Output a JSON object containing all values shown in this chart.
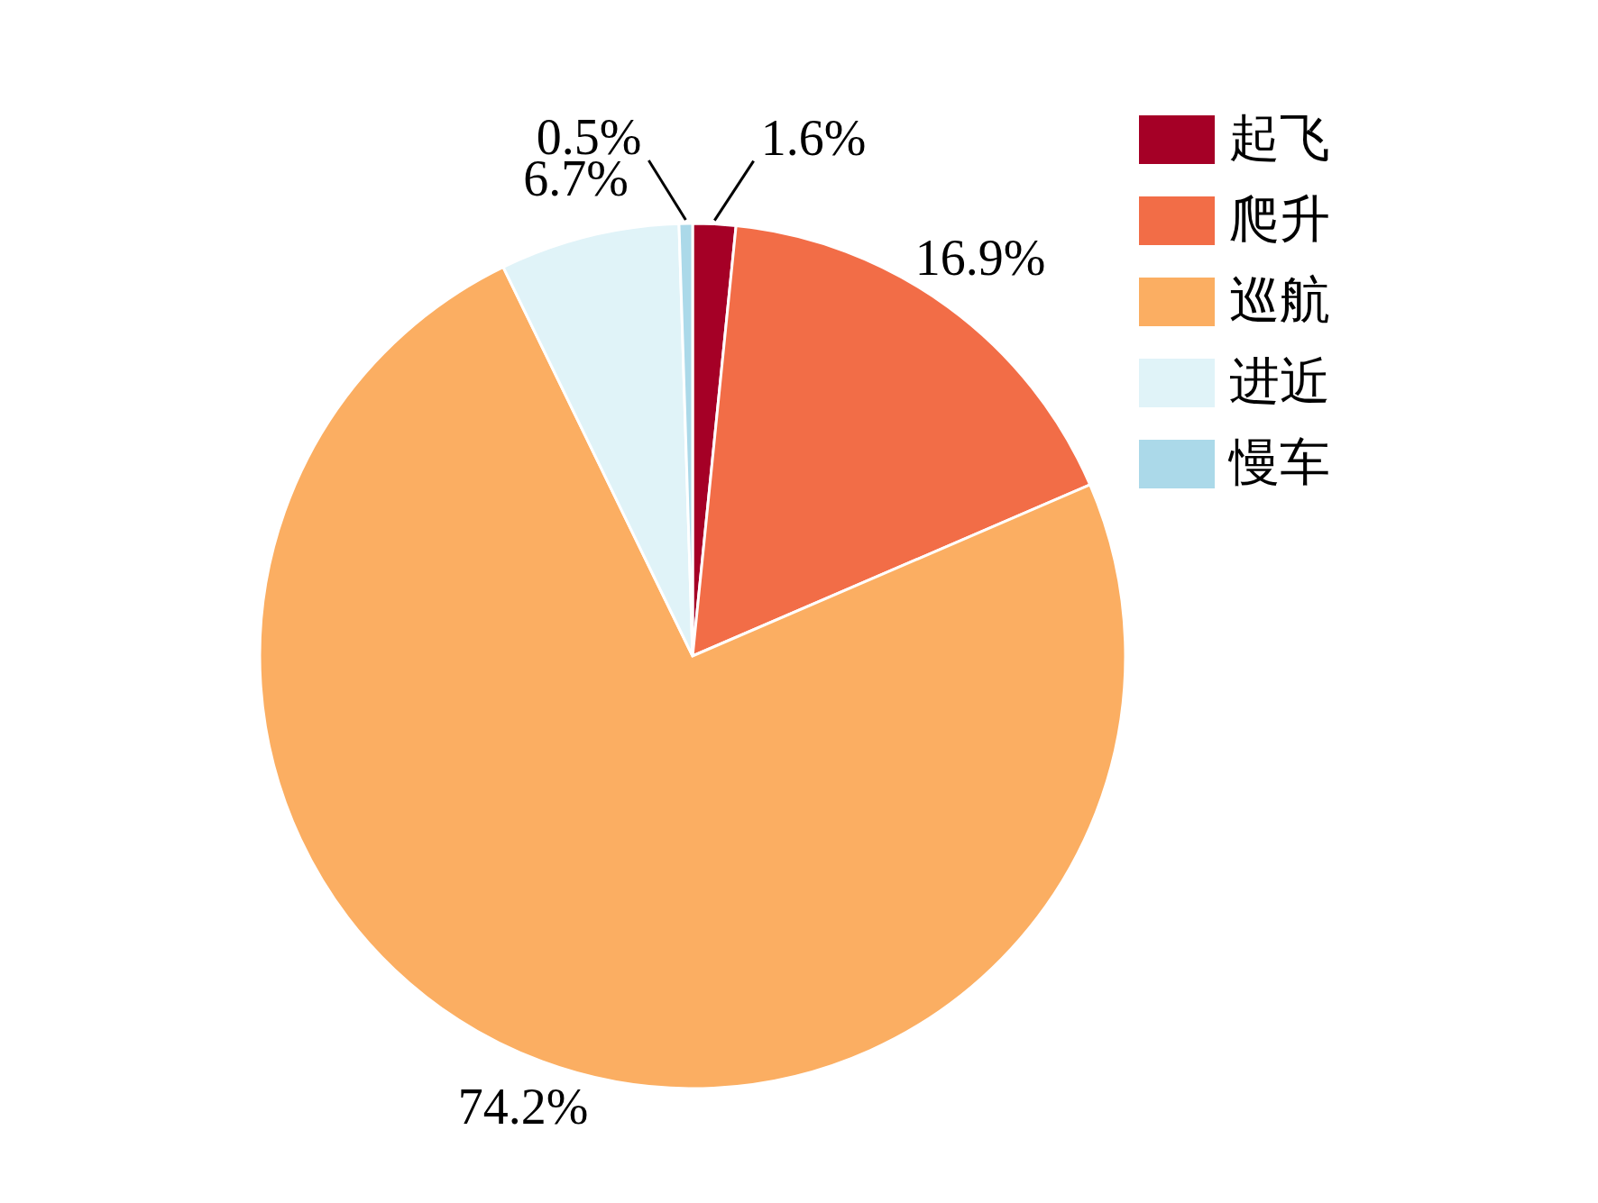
{
  "chart_data": {
    "type": "pie",
    "categories": [
      "起飞",
      "爬升",
      "巡航",
      "进近",
      "慢车"
    ],
    "values": [
      1.6,
      16.9,
      74.2,
      6.7,
      0.5
    ],
    "colors": [
      "#a50026",
      "#f26d47",
      "#fbae62",
      "#e0f3f8",
      "#abd9e9"
    ],
    "value_labels": [
      "1.6%",
      "16.9%",
      "74.2%",
      "6.7%",
      "0.5%"
    ],
    "legend": "top right"
  }
}
